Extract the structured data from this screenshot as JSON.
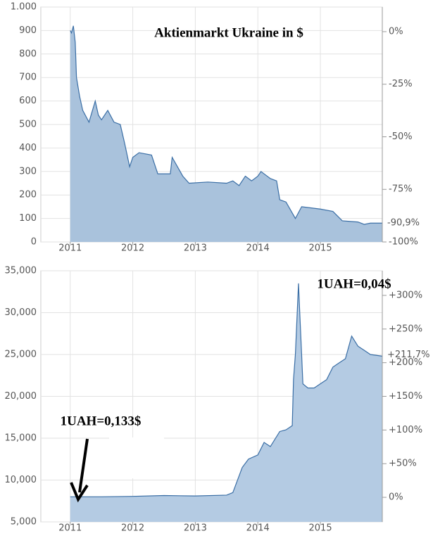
{
  "chart_data": [
    {
      "type": "area",
      "title": "Aktienmarkt Ukraine in $",
      "color": "#3a6ea5",
      "fill": "#a9c2dc",
      "x": [
        2011.0,
        2011.02,
        2011.05,
        2011.08,
        2011.1,
        2011.15,
        2011.2,
        2011.3,
        2011.4,
        2011.45,
        2011.5,
        2011.6,
        2011.7,
        2011.8,
        2011.87,
        2011.95,
        2012.0,
        2012.1,
        2012.3,
        2012.4,
        2012.6,
        2012.63,
        2012.8,
        2012.9,
        2013.2,
        2013.5,
        2013.6,
        2013.7,
        2013.8,
        2013.9,
        2014.0,
        2014.05,
        2014.2,
        2014.3,
        2014.35,
        2014.45,
        2014.6,
        2014.7,
        2015.0,
        2015.2,
        2015.35,
        2015.6,
        2015.7,
        2015.8,
        2015.99
      ],
      "values": [
        900,
        890,
        920,
        850,
        700,
        620,
        560,
        510,
        600,
        540,
        520,
        560,
        510,
        500,
        420,
        320,
        360,
        380,
        370,
        290,
        290,
        360,
        280,
        250,
        255,
        250,
        260,
        240,
        280,
        260,
        280,
        300,
        270,
        260,
        180,
        170,
        100,
        150,
        140,
        130,
        90,
        85,
        75,
        80,
        80
      ],
      "xlim": [
        2010.53,
        2015.99
      ],
      "xticks": [
        2011,
        2012,
        2013,
        2014,
        2015
      ],
      "ylim": [
        0,
        1000
      ],
      "yticks": [
        0,
        100,
        200,
        300,
        400,
        500,
        600,
        700,
        800,
        900,
        {
          "value": 1000,
          "label": "1.000"
        }
      ],
      "y2lim": [
        -100,
        11.7
      ],
      "y2ticks": [
        {
          "value": -100,
          "label": "-100%"
        },
        {
          "value": -75,
          "label": "-75%"
        },
        {
          "value": -50,
          "label": "-50%"
        },
        {
          "value": -25,
          "label": "-25%"
        },
        {
          "value": 0,
          "label": "0%"
        }
      ],
      "current_change": {
        "value": -90.9,
        "label": "-90,9%",
        "color": "#b00000"
      },
      "grid": true
    },
    {
      "type": "area",
      "annotations": [
        "1UAH=0,04$",
        "1UAH=0,133$"
      ],
      "color": "#3a6ea5",
      "fill": "#b4cbe3",
      "x": [
        2011.0,
        2011.5,
        2012.0,
        2012.5,
        2013.0,
        2013.5,
        2013.6,
        2013.65,
        2013.7,
        2013.75,
        2013.85,
        2014.0,
        2014.1,
        2014.2,
        2014.35,
        2014.45,
        2014.55,
        2014.57,
        2014.6,
        2014.65,
        2014.67,
        2014.7,
        2014.72,
        2014.8,
        2014.9,
        2015.0,
        2015.1,
        2015.2,
        2015.3,
        2015.4,
        2015.5,
        2015.6,
        2015.7,
        2015.8,
        2015.99
      ],
      "values": [
        8000,
        8000,
        8050,
        8150,
        8100,
        8200,
        8500,
        9500,
        10500,
        11500,
        12500,
        13000,
        14500,
        14000,
        15800,
        16000,
        16500,
        22000,
        25000,
        33500,
        30000,
        25000,
        21500,
        21000,
        21000,
        21500,
        22000,
        23500,
        24000,
        24500,
        27200,
        26000,
        25500,
        25000,
        24800
      ],
      "xlim": [
        2010.53,
        2015.99
      ],
      "xticks": [
        2011,
        2012,
        2013,
        2014,
        2015
      ],
      "ylim": [
        5000,
        35000
      ],
      "yticks": [
        {
          "value": 5000,
          "label": "5,000"
        },
        {
          "value": 10000,
          "label": "10,000"
        },
        {
          "value": 15000,
          "label": "15,000"
        },
        {
          "value": 20000,
          "label": "20,000"
        },
        {
          "value": 25000,
          "label": "25,000"
        },
        {
          "value": 30000,
          "label": "30,000"
        },
        {
          "value": 35000,
          "label": "35,000"
        }
      ],
      "y2lim": [
        -36.5,
        336.5
      ],
      "y2ticks": [
        {
          "value": 0,
          "label": "0%"
        },
        {
          "value": 50,
          "label": "+50%"
        },
        {
          "value": 100,
          "label": "+100%"
        },
        {
          "value": 150,
          "label": "+150%"
        },
        {
          "value": 200,
          "label": "+200%"
        },
        {
          "value": 250,
          "label": "+250%"
        },
        {
          "value": 300,
          "label": "+300%"
        }
      ],
      "current_change": {
        "value": 211.7,
        "label": "+211,7%",
        "color": "#2a9a2a"
      },
      "grid": true
    }
  ]
}
